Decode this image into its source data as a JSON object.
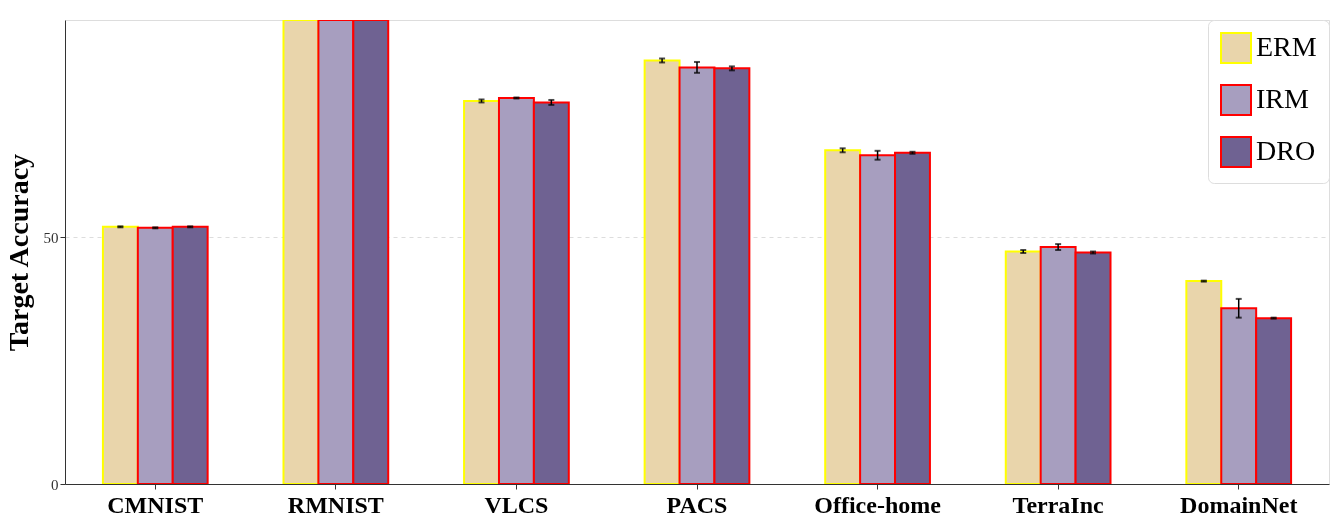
{
  "chart_data": {
    "type": "bar",
    "ylabel": "Target Accuracy",
    "categories": [
      "CMNIST",
      "RMNIST",
      "VLCS",
      "PACS",
      "Office-home",
      "TerraInc",
      "DomainNet"
    ],
    "series": [
      {
        "name": "ERM",
        "color": "#e9d5ab",
        "values": [
          52.1,
          94,
          77.6,
          85.8,
          67.6,
          47.1,
          41.1
        ],
        "errors": [
          0.1,
          null,
          0.3,
          0.4,
          0.4,
          0.3,
          0.1
        ]
      },
      {
        "name": "IRM",
        "color": "#a79ebf",
        "values": [
          51.9,
          94,
          78.2,
          84.4,
          66.6,
          48.0,
          35.6
        ],
        "errors": [
          0.1,
          null,
          0.1,
          1.1,
          0.9,
          0.6,
          1.9
        ]
      },
      {
        "name": "DRO",
        "color": "#6f6292",
        "values": [
          52.1,
          94,
          77.3,
          84.2,
          67.1,
          46.9,
          33.6
        ],
        "errors": [
          0.1,
          null,
          0.5,
          0.4,
          0.2,
          0.2,
          0.1
        ]
      }
    ],
    "ylim": [
      0,
      94
    ],
    "yticks": [
      0,
      50
    ],
    "grid": "y",
    "legend": "top right"
  }
}
